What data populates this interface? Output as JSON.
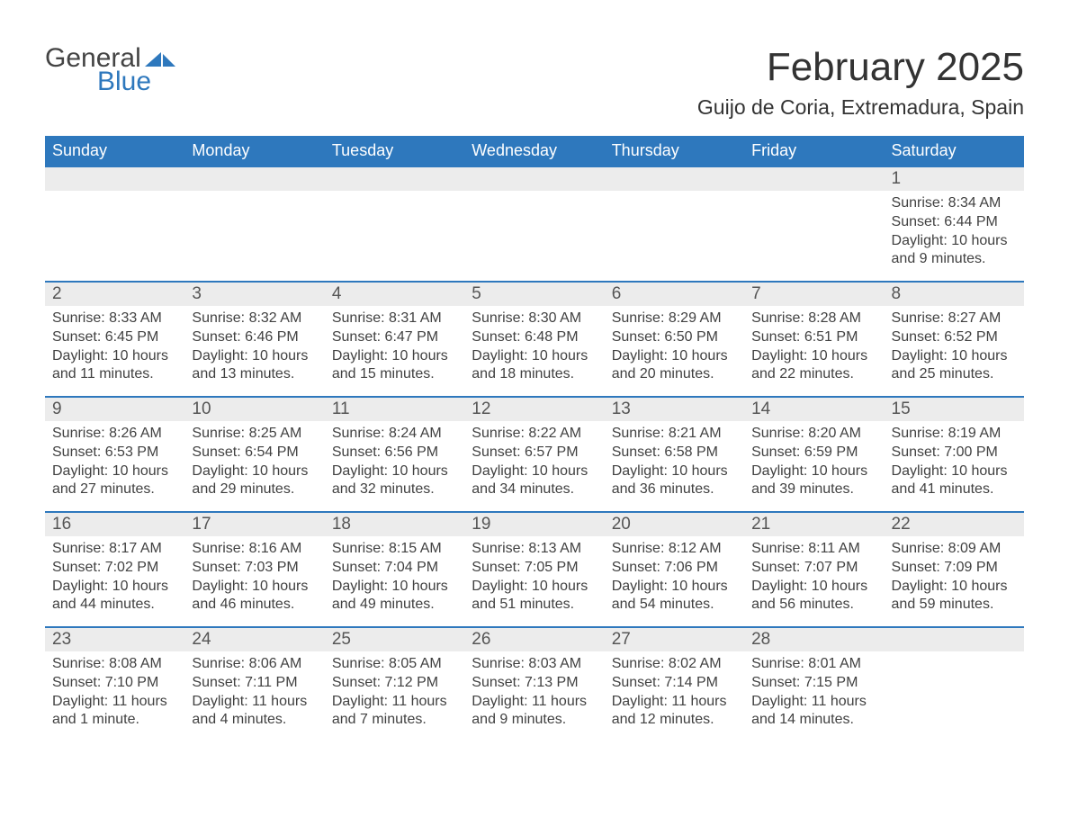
{
  "logo": {
    "text_general": "General",
    "text_blue": "Blue",
    "mark_color": "#2e78bd"
  },
  "title": "February 2025",
  "location": "Guijo de Coria, Extremadura, Spain",
  "colors": {
    "header_bg": "#2e78bd",
    "header_text": "#ffffff",
    "row_border": "#2e78bd",
    "daynum_bg": "#ececec",
    "body_text": "#414141",
    "page_bg": "#ffffff"
  },
  "day_headers": [
    "Sunday",
    "Monday",
    "Tuesday",
    "Wednesday",
    "Thursday",
    "Friday",
    "Saturday"
  ],
  "weeks": [
    [
      null,
      null,
      null,
      null,
      null,
      null,
      {
        "n": "1",
        "sr": "Sunrise: 8:34 AM",
        "ss": "Sunset: 6:44 PM",
        "dl1": "Daylight: 10 hours",
        "dl2": "and 9 minutes."
      }
    ],
    [
      {
        "n": "2",
        "sr": "Sunrise: 8:33 AM",
        "ss": "Sunset: 6:45 PM",
        "dl1": "Daylight: 10 hours",
        "dl2": "and 11 minutes."
      },
      {
        "n": "3",
        "sr": "Sunrise: 8:32 AM",
        "ss": "Sunset: 6:46 PM",
        "dl1": "Daylight: 10 hours",
        "dl2": "and 13 minutes."
      },
      {
        "n": "4",
        "sr": "Sunrise: 8:31 AM",
        "ss": "Sunset: 6:47 PM",
        "dl1": "Daylight: 10 hours",
        "dl2": "and 15 minutes."
      },
      {
        "n": "5",
        "sr": "Sunrise: 8:30 AM",
        "ss": "Sunset: 6:48 PM",
        "dl1": "Daylight: 10 hours",
        "dl2": "and 18 minutes."
      },
      {
        "n": "6",
        "sr": "Sunrise: 8:29 AM",
        "ss": "Sunset: 6:50 PM",
        "dl1": "Daylight: 10 hours",
        "dl2": "and 20 minutes."
      },
      {
        "n": "7",
        "sr": "Sunrise: 8:28 AM",
        "ss": "Sunset: 6:51 PM",
        "dl1": "Daylight: 10 hours",
        "dl2": "and 22 minutes."
      },
      {
        "n": "8",
        "sr": "Sunrise: 8:27 AM",
        "ss": "Sunset: 6:52 PM",
        "dl1": "Daylight: 10 hours",
        "dl2": "and 25 minutes."
      }
    ],
    [
      {
        "n": "9",
        "sr": "Sunrise: 8:26 AM",
        "ss": "Sunset: 6:53 PM",
        "dl1": "Daylight: 10 hours",
        "dl2": "and 27 minutes."
      },
      {
        "n": "10",
        "sr": "Sunrise: 8:25 AM",
        "ss": "Sunset: 6:54 PM",
        "dl1": "Daylight: 10 hours",
        "dl2": "and 29 minutes."
      },
      {
        "n": "11",
        "sr": "Sunrise: 8:24 AM",
        "ss": "Sunset: 6:56 PM",
        "dl1": "Daylight: 10 hours",
        "dl2": "and 32 minutes."
      },
      {
        "n": "12",
        "sr": "Sunrise: 8:22 AM",
        "ss": "Sunset: 6:57 PM",
        "dl1": "Daylight: 10 hours",
        "dl2": "and 34 minutes."
      },
      {
        "n": "13",
        "sr": "Sunrise: 8:21 AM",
        "ss": "Sunset: 6:58 PM",
        "dl1": "Daylight: 10 hours",
        "dl2": "and 36 minutes."
      },
      {
        "n": "14",
        "sr": "Sunrise: 8:20 AM",
        "ss": "Sunset: 6:59 PM",
        "dl1": "Daylight: 10 hours",
        "dl2": "and 39 minutes."
      },
      {
        "n": "15",
        "sr": "Sunrise: 8:19 AM",
        "ss": "Sunset: 7:00 PM",
        "dl1": "Daylight: 10 hours",
        "dl2": "and 41 minutes."
      }
    ],
    [
      {
        "n": "16",
        "sr": "Sunrise: 8:17 AM",
        "ss": "Sunset: 7:02 PM",
        "dl1": "Daylight: 10 hours",
        "dl2": "and 44 minutes."
      },
      {
        "n": "17",
        "sr": "Sunrise: 8:16 AM",
        "ss": "Sunset: 7:03 PM",
        "dl1": "Daylight: 10 hours",
        "dl2": "and 46 minutes."
      },
      {
        "n": "18",
        "sr": "Sunrise: 8:15 AM",
        "ss": "Sunset: 7:04 PM",
        "dl1": "Daylight: 10 hours",
        "dl2": "and 49 minutes."
      },
      {
        "n": "19",
        "sr": "Sunrise: 8:13 AM",
        "ss": "Sunset: 7:05 PM",
        "dl1": "Daylight: 10 hours",
        "dl2": "and 51 minutes."
      },
      {
        "n": "20",
        "sr": "Sunrise: 8:12 AM",
        "ss": "Sunset: 7:06 PM",
        "dl1": "Daylight: 10 hours",
        "dl2": "and 54 minutes."
      },
      {
        "n": "21",
        "sr": "Sunrise: 8:11 AM",
        "ss": "Sunset: 7:07 PM",
        "dl1": "Daylight: 10 hours",
        "dl2": "and 56 minutes."
      },
      {
        "n": "22",
        "sr": "Sunrise: 8:09 AM",
        "ss": "Sunset: 7:09 PM",
        "dl1": "Daylight: 10 hours",
        "dl2": "and 59 minutes."
      }
    ],
    [
      {
        "n": "23",
        "sr": "Sunrise: 8:08 AM",
        "ss": "Sunset: 7:10 PM",
        "dl1": "Daylight: 11 hours",
        "dl2": "and 1 minute."
      },
      {
        "n": "24",
        "sr": "Sunrise: 8:06 AM",
        "ss": "Sunset: 7:11 PM",
        "dl1": "Daylight: 11 hours",
        "dl2": "and 4 minutes."
      },
      {
        "n": "25",
        "sr": "Sunrise: 8:05 AM",
        "ss": "Sunset: 7:12 PM",
        "dl1": "Daylight: 11 hours",
        "dl2": "and 7 minutes."
      },
      {
        "n": "26",
        "sr": "Sunrise: 8:03 AM",
        "ss": "Sunset: 7:13 PM",
        "dl1": "Daylight: 11 hours",
        "dl2": "and 9 minutes."
      },
      {
        "n": "27",
        "sr": "Sunrise: 8:02 AM",
        "ss": "Sunset: 7:14 PM",
        "dl1": "Daylight: 11 hours",
        "dl2": "and 12 minutes."
      },
      {
        "n": "28",
        "sr": "Sunrise: 8:01 AM",
        "ss": "Sunset: 7:15 PM",
        "dl1": "Daylight: 11 hours",
        "dl2": "and 14 minutes."
      },
      null
    ]
  ]
}
